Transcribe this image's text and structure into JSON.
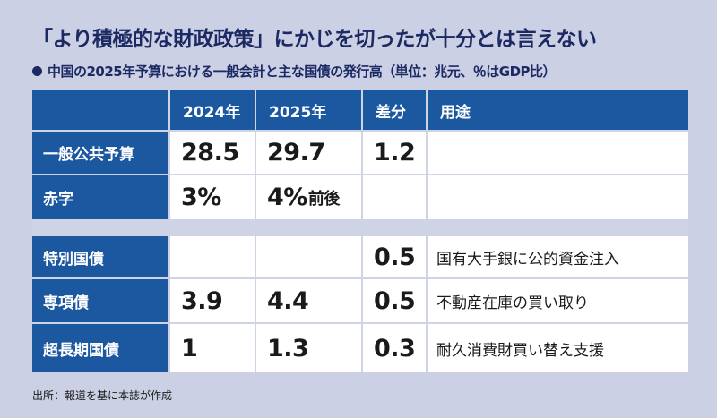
{
  "title": "「より積極的な財政政策」にかじを切ったが十分とは言えない",
  "subtitle": "中国の2025年予算における一般会計と主な国債の発行高（単位：兆元、％はGDP比）",
  "table": {
    "headers": [
      "",
      "2024年",
      "2025年",
      "差分",
      "用途"
    ],
    "rows": [
      {
        "label": "一般公共予算",
        "y2024": "28.5",
        "y2025": "29.7",
        "y2025_suffix": "",
        "diff": "1.2",
        "use": ""
      },
      {
        "label": "赤字",
        "y2024": "3%",
        "y2025": "4%",
        "y2025_suffix": "前後",
        "diff": "",
        "use": ""
      },
      {
        "label": "特別国債",
        "y2024": "",
        "y2025": "",
        "y2025_suffix": "",
        "diff": "0.5",
        "use": "国有大手銀に公的資金注入"
      },
      {
        "label": "専項債",
        "y2024": "3.9",
        "y2025": "4.4",
        "y2025_suffix": "",
        "diff": "0.5",
        "use": "不動産在庫の買い取り"
      },
      {
        "label": "超長期国債",
        "y2024": "1",
        "y2025": "1.3",
        "y2025_suffix": "",
        "diff": "0.3",
        "use": "耐久消費財買い替え支援"
      }
    ]
  },
  "source": "出所：報道を基に本誌が作成"
}
